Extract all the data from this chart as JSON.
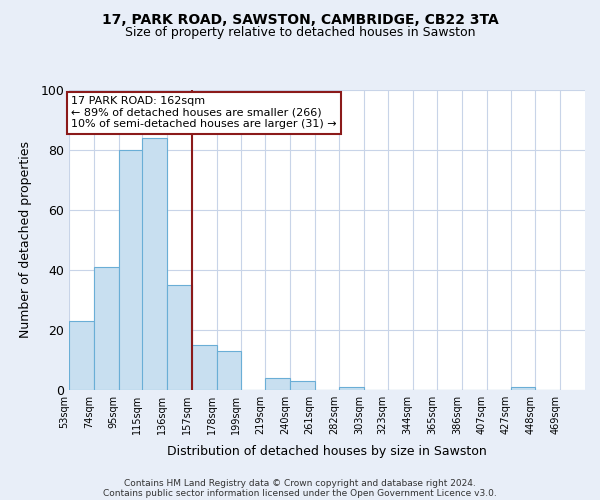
{
  "title": "17, PARK ROAD, SAWSTON, CAMBRIDGE, CB22 3TA",
  "subtitle": "Size of property relative to detached houses in Sawston",
  "xlabel": "Distribution of detached houses by size in Sawston",
  "ylabel": "Number of detached properties",
  "footer_lines": [
    "Contains HM Land Registry data © Crown copyright and database right 2024.",
    "Contains public sector information licensed under the Open Government Licence v3.0."
  ],
  "bar_left_edges": [
    53,
    74,
    95,
    115,
    136,
    157,
    178,
    199,
    219,
    240,
    261,
    282,
    303,
    323,
    344,
    365,
    386,
    407,
    427,
    448
  ],
  "bar_heights": [
    23,
    41,
    80,
    84,
    35,
    15,
    13,
    0,
    4,
    3,
    0,
    1,
    0,
    0,
    0,
    0,
    0,
    0,
    1,
    0
  ],
  "bin_width": 21,
  "bar_facecolor": "#c8dff0",
  "bar_edgecolor": "#6aaed6",
  "x_tick_labels": [
    "53sqm",
    "74sqm",
    "95sqm",
    "115sqm",
    "136sqm",
    "157sqm",
    "178sqm",
    "199sqm",
    "219sqm",
    "240sqm",
    "261sqm",
    "282sqm",
    "303sqm",
    "323sqm",
    "344sqm",
    "365sqm",
    "386sqm",
    "407sqm",
    "427sqm",
    "448sqm",
    "469sqm"
  ],
  "ylim": [
    0,
    100
  ],
  "yticks": [
    0,
    20,
    40,
    60,
    80,
    100
  ],
  "vline_x": 157,
  "vline_color": "#8b1a1a",
  "annotation_text": "17 PARK ROAD: 162sqm\n← 89% of detached houses are smaller (266)\n10% of semi-detached houses are larger (31) →",
  "annotation_box_edgecolor": "#8b1a1a",
  "bg_color": "#e8eef8",
  "plot_bg_color": "#ffffff",
  "grid_color": "#c8d4e8"
}
